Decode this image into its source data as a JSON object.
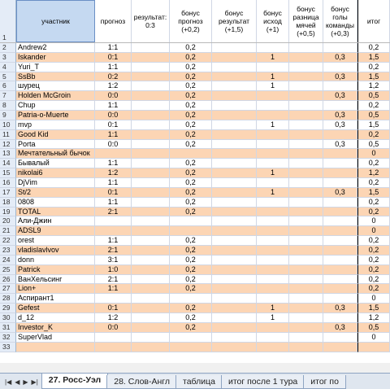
{
  "header": {
    "row_num": "1",
    "name": "участник",
    "prog": "прогноз",
    "res": "результат: 0:3",
    "b1": "бонус прогноз (+0,2)",
    "b2": "бонус результат (+1,5)",
    "b3": "бонус исход (+1)",
    "b4": "бонус разница мячей (+0,5)",
    "b5": "бонус голы команды (+0,3)",
    "tot": "итог"
  },
  "rows": [
    {
      "n": "2",
      "name": "Andrew2",
      "prog": "1:1",
      "b1": "0,2",
      "b3": "",
      "b5": "",
      "tot": "0,2"
    },
    {
      "n": "3",
      "name": "Iskander",
      "prog": "0:1",
      "b1": "0,2",
      "b3": "1",
      "b5": "0,3",
      "tot": "1,5"
    },
    {
      "n": "4",
      "name": "Yuri_T",
      "prog": "1:1",
      "b1": "0,2",
      "b3": "",
      "b5": "",
      "tot": "0,2"
    },
    {
      "n": "5",
      "name": "SsBb",
      "prog": "0:2",
      "b1": "0,2",
      "b3": "1",
      "b5": "0,3",
      "tot": "1,5"
    },
    {
      "n": "6",
      "name": "шурец",
      "prog": "1:2",
      "b1": "0,2",
      "b3": "1",
      "b5": "",
      "tot": "1,2"
    },
    {
      "n": "7",
      "name": "Holden McGroin",
      "prog": "0:0",
      "b1": "0,2",
      "b3": "",
      "b5": "0,3",
      "tot": "0,5"
    },
    {
      "n": "8",
      "name": "Chup",
      "prog": "1:1",
      "b1": "0,2",
      "b3": "",
      "b5": "",
      "tot": "0,2"
    },
    {
      "n": "9",
      "name": "Patria-o-Muerte",
      "prog": "0:0",
      "b1": "0,2",
      "b3": "",
      "b5": "0,3",
      "tot": "0,5"
    },
    {
      "n": "10",
      "name": "mvp",
      "prog": "0:1",
      "b1": "0,2",
      "b3": "1",
      "b5": "0,3",
      "tot": "1,5"
    },
    {
      "n": "11",
      "name": "Good Kid",
      "prog": "1:1",
      "b1": "0,2",
      "b3": "",
      "b5": "",
      "tot": "0,2"
    },
    {
      "n": "12",
      "name": "Porta",
      "prog": "0:0",
      "b1": "0,2",
      "b3": "",
      "b5": "0,3",
      "tot": "0,5"
    },
    {
      "n": "13",
      "name": "Мечтательный бычок",
      "prog": "",
      "b1": "",
      "b3": "",
      "b5": "",
      "tot": "0"
    },
    {
      "n": "14",
      "name": "Бывалый",
      "prog": "1:1",
      "b1": "0,2",
      "b3": "",
      "b5": "",
      "tot": "0,2"
    },
    {
      "n": "15",
      "name": "nikolai6",
      "prog": "1:2",
      "b1": "0,2",
      "b3": "1",
      "b5": "",
      "tot": "1,2"
    },
    {
      "n": "16",
      "name": "DjVim",
      "prog": "1:1",
      "b1": "0,2",
      "b3": "",
      "b5": "",
      "tot": "0,2"
    },
    {
      "n": "17",
      "name": "St/2",
      "prog": "0:1",
      "b1": "0,2",
      "b3": "1",
      "b5": "0,3",
      "tot": "1,5"
    },
    {
      "n": "18",
      "name": "0808",
      "prog": "1:1",
      "b1": "0,2",
      "b3": "",
      "b5": "",
      "tot": "0,2"
    },
    {
      "n": "19",
      "name": "TOTAL",
      "prog": "2:1",
      "b1": "0,2",
      "b3": "",
      "b5": "",
      "tot": "0,2"
    },
    {
      "n": "20",
      "name": "Али-Джин",
      "prog": "",
      "b1": "",
      "b3": "",
      "b5": "",
      "tot": "0"
    },
    {
      "n": "21",
      "name": "ADSL9",
      "prog": "",
      "b1": "",
      "b3": "",
      "b5": "",
      "tot": "0"
    },
    {
      "n": "22",
      "name": "orest",
      "prog": "1:1",
      "b1": "0,2",
      "b3": "",
      "b5": "",
      "tot": "0,2"
    },
    {
      "n": "23",
      "name": "vladislavlvov",
      "prog": "2:1",
      "b1": "0,2",
      "b3": "",
      "b5": "",
      "tot": "0,2"
    },
    {
      "n": "24",
      "name": "donn",
      "prog": "3:1",
      "b1": "0,2",
      "b3": "",
      "b5": "",
      "tot": "0,2"
    },
    {
      "n": "25",
      "name": "Patrick",
      "prog": "1:0",
      "b1": "0,2",
      "b3": "",
      "b5": "",
      "tot": "0,2"
    },
    {
      "n": "26",
      "name": "ВанХельсинг",
      "prog": "2:1",
      "b1": "0,2",
      "b3": "",
      "b5": "",
      "tot": "0,2"
    },
    {
      "n": "27",
      "name": "Lion+",
      "prog": "1:1",
      "b1": "0,2",
      "b3": "",
      "b5": "",
      "tot": "0,2"
    },
    {
      "n": "28",
      "name": "Аспирант1",
      "prog": "",
      "b1": "",
      "b3": "",
      "b5": "",
      "tot": "0"
    },
    {
      "n": "29",
      "name": "Gefest",
      "prog": "0:1",
      "b1": "0,2",
      "b3": "1",
      "b5": "0,3",
      "tot": "1,5"
    },
    {
      "n": "30",
      "name": "d_12",
      "prog": "1:2",
      "b1": "0,2",
      "b3": "1",
      "b5": "",
      "tot": "1,2"
    },
    {
      "n": "31",
      "name": "Investor_K",
      "prog": "0:0",
      "b1": "0,2",
      "b3": "",
      "b5": "0,3",
      "tot": "0,5"
    },
    {
      "n": "32",
      "name": "SuperVlad",
      "prog": "",
      "b1": "",
      "b3": "",
      "b5": "",
      "tot": "0"
    },
    {
      "n": "33",
      "name": "",
      "prog": "",
      "b1": "",
      "b3": "",
      "b5": "",
      "tot": ""
    }
  ],
  "sheet_tabs": [
    {
      "label": "27. Росс-Уэл",
      "active": true
    },
    {
      "label": "28. Слов-Англ",
      "active": false
    },
    {
      "label": "таблица",
      "active": false
    },
    {
      "label": "итог после 1 тура",
      "active": false
    },
    {
      "label": "итог по",
      "active": false
    }
  ],
  "nav_icons": [
    "first-sheet-icon",
    "prev-sheet-icon",
    "next-sheet-icon",
    "last-sheet-icon"
  ],
  "colors": {
    "row_odd": "#ffffff",
    "row_even": "#fcd5b4",
    "header_name": "#c5d9f1"
  }
}
